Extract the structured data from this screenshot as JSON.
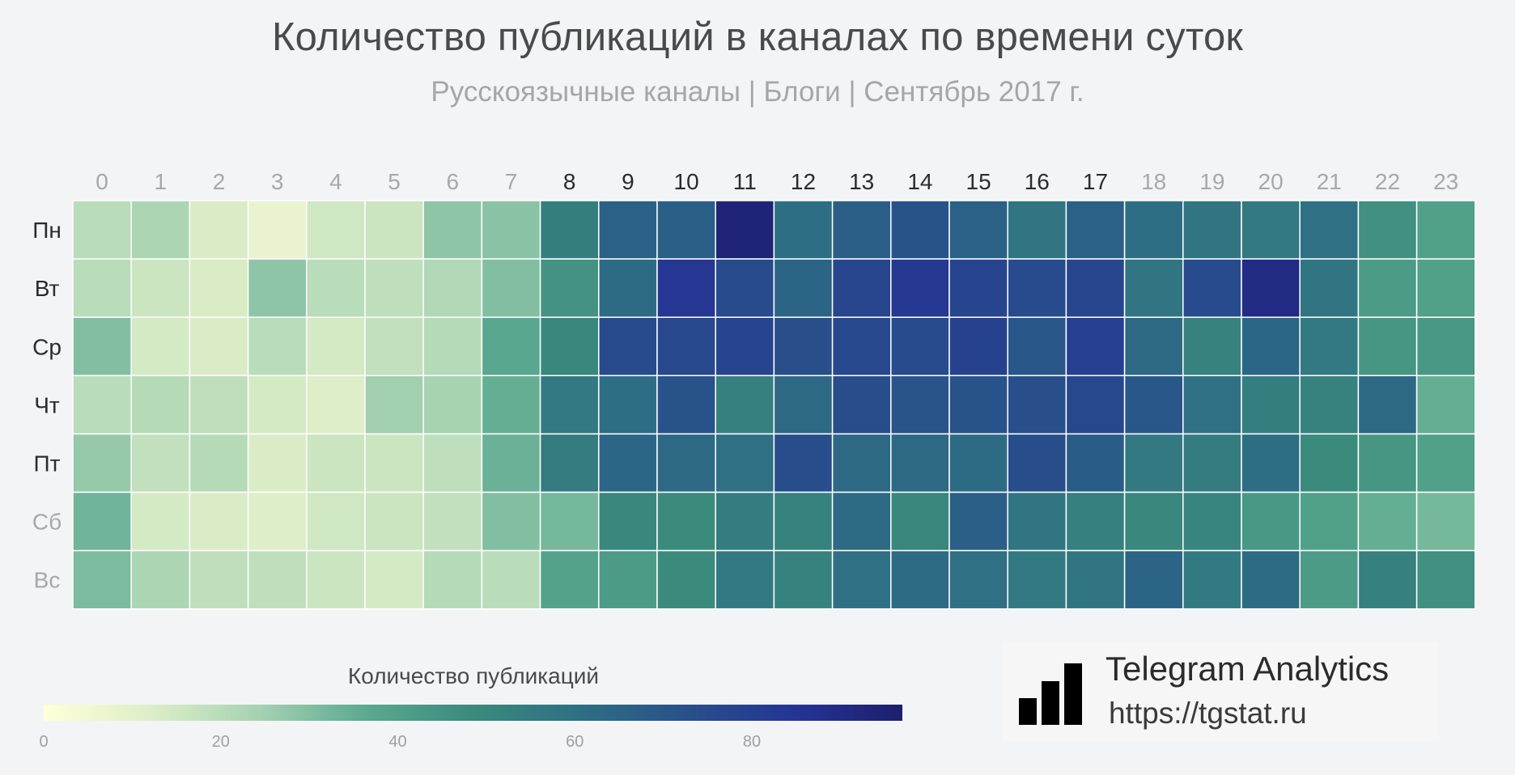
{
  "header": {
    "title": "Количество публикаций в каналах по времени суток",
    "subtitle": "Русскоязычные каналы | Блоги | Сентябрь 2017 г."
  },
  "chart_data": {
    "type": "heatmap",
    "title": "Количество публикаций в каналах по времени суток",
    "subtitle": "Русскоязычные каналы | Блоги | Сентябрь 2017 г.",
    "x": [
      "0",
      "1",
      "2",
      "3",
      "4",
      "5",
      "6",
      "7",
      "8",
      "9",
      "10",
      "11",
      "12",
      "13",
      "14",
      "15",
      "16",
      "17",
      "18",
      "19",
      "20",
      "21",
      "22",
      "23"
    ],
    "y": [
      "Пн",
      "Вт",
      "Ср",
      "Чт",
      "Пт",
      "Сб",
      "Вс"
    ],
    "x_highlight": [
      false,
      false,
      false,
      false,
      false,
      false,
      false,
      false,
      true,
      true,
      true,
      true,
      true,
      true,
      true,
      true,
      true,
      true,
      false,
      false,
      false,
      false,
      false,
      false
    ],
    "y_highlight": [
      true,
      true,
      true,
      true,
      true,
      false,
      false
    ],
    "values": [
      [
        20,
        23,
        13,
        8,
        15,
        16,
        28,
        29,
        54,
        66,
        67,
        94,
        61,
        67,
        72,
        66,
        58,
        66,
        61,
        58,
        56,
        60,
        46,
        40
      ],
      [
        20,
        16,
        13,
        28,
        20,
        19,
        22,
        30,
        45,
        62,
        84,
        75,
        65,
        77,
        83,
        78,
        75,
        77,
        58,
        75,
        90,
        58,
        42,
        40
      ],
      [
        30,
        14,
        13,
        20,
        14,
        18,
        21,
        37,
        50,
        75,
        76,
        78,
        73,
        76,
        75,
        79,
        70,
        80,
        63,
        52,
        64,
        56,
        44,
        43
      ],
      [
        20,
        21,
        19,
        14,
        12,
        25,
        24,
        35,
        56,
        61,
        72,
        53,
        63,
        74,
        71,
        72,
        73,
        76,
        70,
        60,
        54,
        52,
        63,
        35
      ],
      [
        27,
        18,
        21,
        13,
        16,
        16,
        19,
        34,
        55,
        64,
        63,
        60,
        74,
        63,
        63,
        62,
        74,
        68,
        56,
        55,
        61,
        48,
        44,
        40
      ],
      [
        33,
        14,
        13,
        12,
        15,
        16,
        18,
        30,
        32,
        50,
        48,
        55,
        52,
        62,
        50,
        67,
        58,
        53,
        50,
        51,
        43,
        40,
        35,
        32
      ],
      [
        31,
        23,
        19,
        19,
        16,
        14,
        21,
        20,
        39,
        42,
        48,
        56,
        52,
        60,
        62,
        60,
        56,
        58,
        65,
        56,
        62,
        42,
        53,
        46
      ]
    ],
    "colorbar": {
      "label": "Количество публикаций",
      "ticks": [
        0,
        20,
        40,
        60,
        80
      ],
      "range": [
        0,
        97
      ],
      "colors": [
        "#ffffd9",
        "#ddeec8",
        "#a6d2b2",
        "#5ba990",
        "#3a8a7c",
        "#2e6f84",
        "#28508a",
        "#253494",
        "#1d1f6e"
      ]
    }
  },
  "colors": {
    "label_dark": "#2b2b2b",
    "label_light": "#a8a8a8"
  },
  "brand": {
    "name": "Telegram Analytics",
    "url": "https://tgstat.ru",
    "icon": "bar-chart-icon"
  }
}
